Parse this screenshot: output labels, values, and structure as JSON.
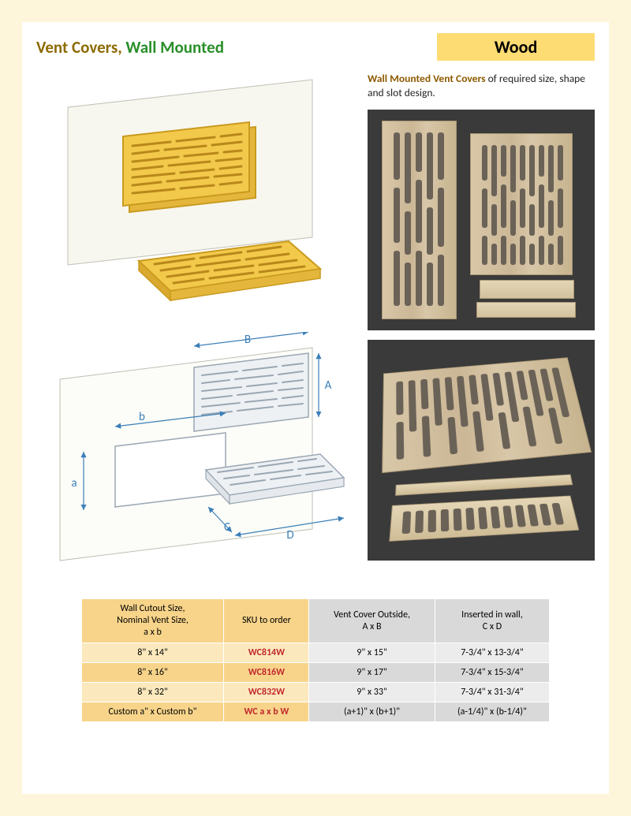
{
  "header": {
    "title_main": "Vent Covers,",
    "title_sub": "Wall Mounted",
    "material": "Wood"
  },
  "intro": {
    "bold": "Wall Mounted Vent Covers",
    "rest": " of required size, shape and slot design."
  },
  "diagram": {
    "labels": {
      "A": "A",
      "B": "B",
      "C": "C",
      "D": "D",
      "a": "a",
      "b": "b"
    },
    "colors": {
      "vent_fill": "#f3c94b",
      "vent_stroke": "#c99a1e",
      "wall_fill": "#f7f7f0",
      "wall_stroke": "#bfbfb5",
      "dim_line": "#3b7fb8",
      "dim_text": "#3b7fb8",
      "outline_fill": "#eef1f4",
      "outline_stroke": "#9aa7b3"
    }
  },
  "table": {
    "headers": [
      "Wall Cutout Size,\nNominal Vent Size,\na x b",
      "SKU to order",
      "Vent Cover Outside,\nA x B",
      "Inserted in wall,\nC x D"
    ],
    "rows": [
      {
        "cutout": "8\" x 14\"",
        "sku": "WC814W",
        "outside": "9\" x 15\"",
        "inserted": "7-3/4\" x 13-3/4\""
      },
      {
        "cutout": "8\" x 16\"",
        "sku": "WC816W",
        "outside": "9\" x 17\"",
        "inserted": "7-3/4\" x 15-3/4\""
      },
      {
        "cutout": "8\" x 32\"",
        "sku": "WC832W",
        "outside": "9\" x 33\"",
        "inserted": "7-3/4\" x 31-3/4\""
      },
      {
        "cutout": "Custom a\" x Custom b\"",
        "sku": "WC a x b W",
        "outside": "(a+1)\" x (b+1)\"",
        "inserted": "(a-1/4)\" x (b-1/4)\""
      }
    ]
  }
}
